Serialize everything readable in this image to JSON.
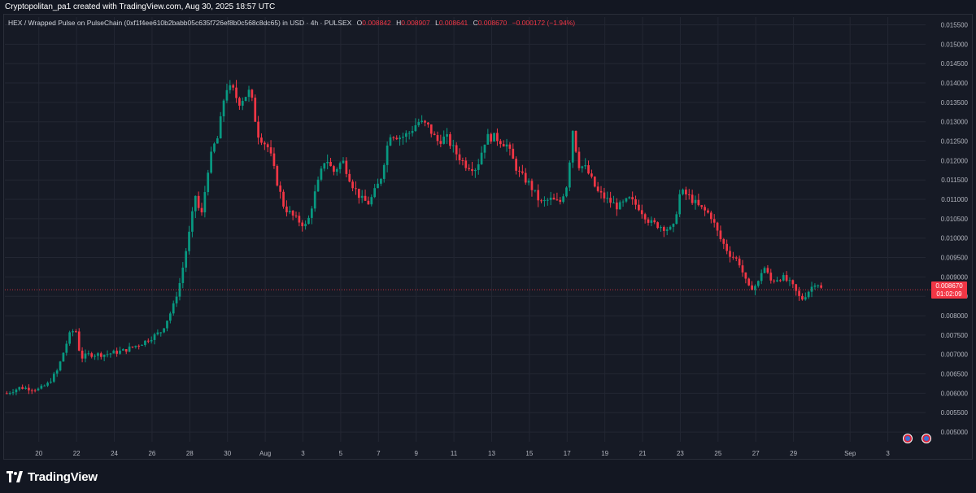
{
  "header": {
    "credit": "Cryptopolitan_pa1 created with TradingView.com, Aug 30, 2025 18:57 UTC"
  },
  "legend": {
    "symbol": "HEX / Wrapped Pulse on PulseChain (0xf1f4ee610b2babb05c635f726ef8b0c568c8dc65) in USD · 4h · PULSEX",
    "open_label": "O",
    "open": "0.008842",
    "high_label": "H",
    "high": "0.008907",
    "low_label": "L",
    "low": "0.008641",
    "close_label": "C",
    "close": "0.008670",
    "change": "−0.000172 (−1.94%)"
  },
  "price_tag": {
    "price": "0.008670",
    "countdown": "01:02:09"
  },
  "branding": {
    "logo_text": "TradingView"
  },
  "colors": {
    "up": "#089981",
    "down": "#f23645",
    "background": "#161a25",
    "grid": "#232733",
    "text": "#b2b5be"
  },
  "chart_data": {
    "type": "candlestick",
    "interval": "4h",
    "ylim": [
      0.00475,
      0.0157
    ],
    "y_ticks": [
      "0.005000",
      "0.005500",
      "0.006000",
      "0.006500",
      "0.007000",
      "0.007500",
      "0.008000",
      "0.008500",
      "0.009000",
      "0.009500",
      "0.010000",
      "0.010500",
      "0.011000",
      "0.011500",
      "0.012000",
      "0.012500",
      "0.013000",
      "0.013500",
      "0.014000",
      "0.014500",
      "0.015000",
      "0.015500"
    ],
    "x_ticks": [
      {
        "label": "20",
        "day": 20
      },
      {
        "label": "22",
        "day": 22
      },
      {
        "label": "24",
        "day": 24
      },
      {
        "label": "26",
        "day": 26
      },
      {
        "label": "28",
        "day": 28
      },
      {
        "label": "30",
        "day": 30
      },
      {
        "label": "Aug",
        "day": 32
      },
      {
        "label": "3",
        "day": 34
      },
      {
        "label": "5",
        "day": 36
      },
      {
        "label": "7",
        "day": 38
      },
      {
        "label": "9",
        "day": 40
      },
      {
        "label": "11",
        "day": 42
      },
      {
        "label": "13",
        "day": 44
      },
      {
        "label": "15",
        "day": 46
      },
      {
        "label": "17",
        "day": 48
      },
      {
        "label": "19",
        "day": 50
      },
      {
        "label": "21",
        "day": 52
      },
      {
        "label": "23",
        "day": 54
      },
      {
        "label": "25",
        "day": 56
      },
      {
        "label": "27",
        "day": 58
      },
      {
        "label": "29",
        "day": 60
      },
      {
        "label": "Sep",
        "day": 63
      },
      {
        "label": "3",
        "day": 65
      }
    ],
    "x_day_range": [
      18.2,
      67.0
    ],
    "anchors": [
      {
        "day": 18.3,
        "price": 0.006
      },
      {
        "day": 19.0,
        "price": 0.00615
      },
      {
        "day": 20.0,
        "price": 0.0061
      },
      {
        "day": 20.5,
        "price": 0.00625
      },
      {
        "day": 21.0,
        "price": 0.0066
      },
      {
        "day": 21.4,
        "price": 0.0072
      },
      {
        "day": 21.7,
        "price": 0.0076
      },
      {
        "day": 22.0,
        "price": 0.0076
      },
      {
        "day": 22.2,
        "price": 0.0069
      },
      {
        "day": 22.6,
        "price": 0.007
      },
      {
        "day": 23.5,
        "price": 0.007
      },
      {
        "day": 24.5,
        "price": 0.0071
      },
      {
        "day": 25.5,
        "price": 0.0073
      },
      {
        "day": 26.5,
        "price": 0.0076
      },
      {
        "day": 27.1,
        "price": 0.0082
      },
      {
        "day": 27.5,
        "price": 0.0089
      },
      {
        "day": 28.0,
        "price": 0.0102
      },
      {
        "day": 28.3,
        "price": 0.0111
      },
      {
        "day": 28.6,
        "price": 0.0105
      },
      {
        "day": 29.0,
        "price": 0.0119
      },
      {
        "day": 29.3,
        "price": 0.0124
      },
      {
        "day": 29.5,
        "price": 0.0126
      },
      {
        "day": 29.9,
        "price": 0.0139
      },
      {
        "day": 30.3,
        "price": 0.0138
      },
      {
        "day": 30.6,
        "price": 0.0135
      },
      {
        "day": 31.2,
        "price": 0.0138
      },
      {
        "day": 31.6,
        "price": 0.0127
      },
      {
        "day": 32.2,
        "price": 0.0123
      },
      {
        "day": 32.6,
        "price": 0.0115
      },
      {
        "day": 33.0,
        "price": 0.0108
      },
      {
        "day": 33.6,
        "price": 0.0105
      },
      {
        "day": 34.2,
        "price": 0.0103
      },
      {
        "day": 34.6,
        "price": 0.0111
      },
      {
        "day": 35.2,
        "price": 0.0121
      },
      {
        "day": 35.6,
        "price": 0.0117
      },
      {
        "day": 36.1,
        "price": 0.012
      },
      {
        "day": 36.6,
        "price": 0.0114
      },
      {
        "day": 37.1,
        "price": 0.011
      },
      {
        "day": 37.5,
        "price": 0.0109
      },
      {
        "day": 38.1,
        "price": 0.0115
      },
      {
        "day": 38.6,
        "price": 0.0127
      },
      {
        "day": 39.2,
        "price": 0.0126
      },
      {
        "day": 39.6,
        "price": 0.0127
      },
      {
        "day": 40.1,
        "price": 0.013
      },
      {
        "day": 40.6,
        "price": 0.0129
      },
      {
        "day": 41.1,
        "price": 0.0125
      },
      {
        "day": 41.6,
        "price": 0.0126
      },
      {
        "day": 42.1,
        "price": 0.0122
      },
      {
        "day": 42.6,
        "price": 0.0119
      },
      {
        "day": 43.2,
        "price": 0.0118
      },
      {
        "day": 43.7,
        "price": 0.0126
      },
      {
        "day": 44.2,
        "price": 0.0126
      },
      {
        "day": 44.8,
        "price": 0.0124
      },
      {
        "day": 45.4,
        "price": 0.0117
      },
      {
        "day": 46.0,
        "price": 0.0114
      },
      {
        "day": 46.6,
        "price": 0.0109
      },
      {
        "day": 47.1,
        "price": 0.011
      },
      {
        "day": 47.6,
        "price": 0.0109
      },
      {
        "day": 48.0,
        "price": 0.0114
      },
      {
        "day": 48.3,
        "price": 0.0128
      },
      {
        "day": 48.6,
        "price": 0.0119
      },
      {
        "day": 49.0,
        "price": 0.0118
      },
      {
        "day": 49.6,
        "price": 0.0112
      },
      {
        "day": 50.1,
        "price": 0.011
      },
      {
        "day": 50.7,
        "price": 0.0108
      },
      {
        "day": 51.3,
        "price": 0.011
      },
      {
        "day": 51.8,
        "price": 0.0108
      },
      {
        "day": 52.4,
        "price": 0.0104
      },
      {
        "day": 53.0,
        "price": 0.0103
      },
      {
        "day": 53.6,
        "price": 0.0102
      },
      {
        "day": 54.0,
        "price": 0.0112
      },
      {
        "day": 54.4,
        "price": 0.0111
      },
      {
        "day": 55.0,
        "price": 0.0108
      },
      {
        "day": 55.6,
        "price": 0.0106
      },
      {
        "day": 56.1,
        "price": 0.01
      },
      {
        "day": 56.6,
        "price": 0.0096
      },
      {
        "day": 57.1,
        "price": 0.0094
      },
      {
        "day": 57.6,
        "price": 0.0087
      },
      {
        "day": 58.1,
        "price": 0.0088
      },
      {
        "day": 58.4,
        "price": 0.0093
      },
      {
        "day": 58.8,
        "price": 0.0089
      },
      {
        "day": 59.4,
        "price": 0.009
      },
      {
        "day": 59.9,
        "price": 0.0088
      },
      {
        "day": 60.4,
        "price": 0.0084
      },
      {
        "day": 60.9,
        "price": 0.0087
      },
      {
        "day": 61.2,
        "price": 0.0089
      },
      {
        "day": 61.5,
        "price": 0.00867
      }
    ]
  }
}
